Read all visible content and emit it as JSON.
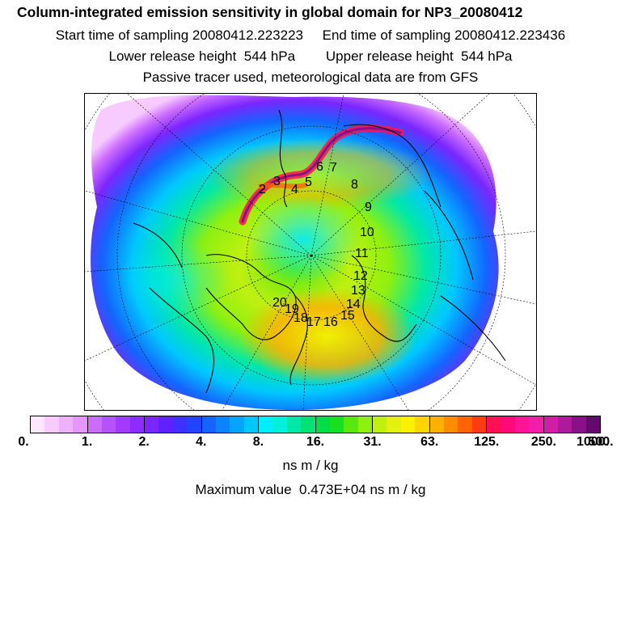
{
  "header": {
    "title": "Column-integrated emission sensitivity in global domain for NP3_20080412",
    "sampling": "Start time of sampling 20080412.223223     End time of sampling 20080412.223436",
    "release": "Lower release height  544 hPa        Upper release height  544 hPa",
    "tracer": "Passive tracer used, meteorological data are from GFS"
  },
  "map": {
    "projection": "polar stereographic (north pole)",
    "track_points": [
      "2",
      "3",
      "4",
      "5",
      "6",
      "7",
      "8",
      "9",
      "10",
      "11",
      "12",
      "13",
      "14",
      "15",
      "16",
      "17",
      "18",
      "19",
      "20"
    ]
  },
  "colorbar": {
    "colors": [
      "#fde8ff",
      "#f7cbff",
      "#efb0ff",
      "#e497ff",
      "#cc6cff",
      "#b651ff",
      "#a43aff",
      "#8f2bff",
      "#7b26ff",
      "#5e22ff",
      "#4030ff",
      "#2145ff",
      "#1464ff",
      "#0a84ff",
      "#06a4ff",
      "#00c8ff",
      "#00ecff",
      "#00f0d9",
      "#00e8a8",
      "#00e278",
      "#00de45",
      "#18e020",
      "#58e810",
      "#8ef010",
      "#c0f010",
      "#e4f010",
      "#fff000",
      "#ffd400",
      "#ffb000",
      "#ff8c00",
      "#ff6400",
      "#ff3c10",
      "#ff1050",
      "#ff0a78",
      "#ff1496",
      "#f01eaa",
      "#d01ea8",
      "#b0189e",
      "#8a108a",
      "#640a6c"
    ],
    "tick_labels": [
      "0.",
      "1.",
      "2.",
      "4.",
      "8.",
      "16.",
      "31.",
      "63.",
      "125.",
      "250.",
      "500.",
      "1000."
    ],
    "units": "ns m / kg"
  },
  "footer": {
    "maximum": "Maximum value  0.473E+04 ns m / kg"
  }
}
